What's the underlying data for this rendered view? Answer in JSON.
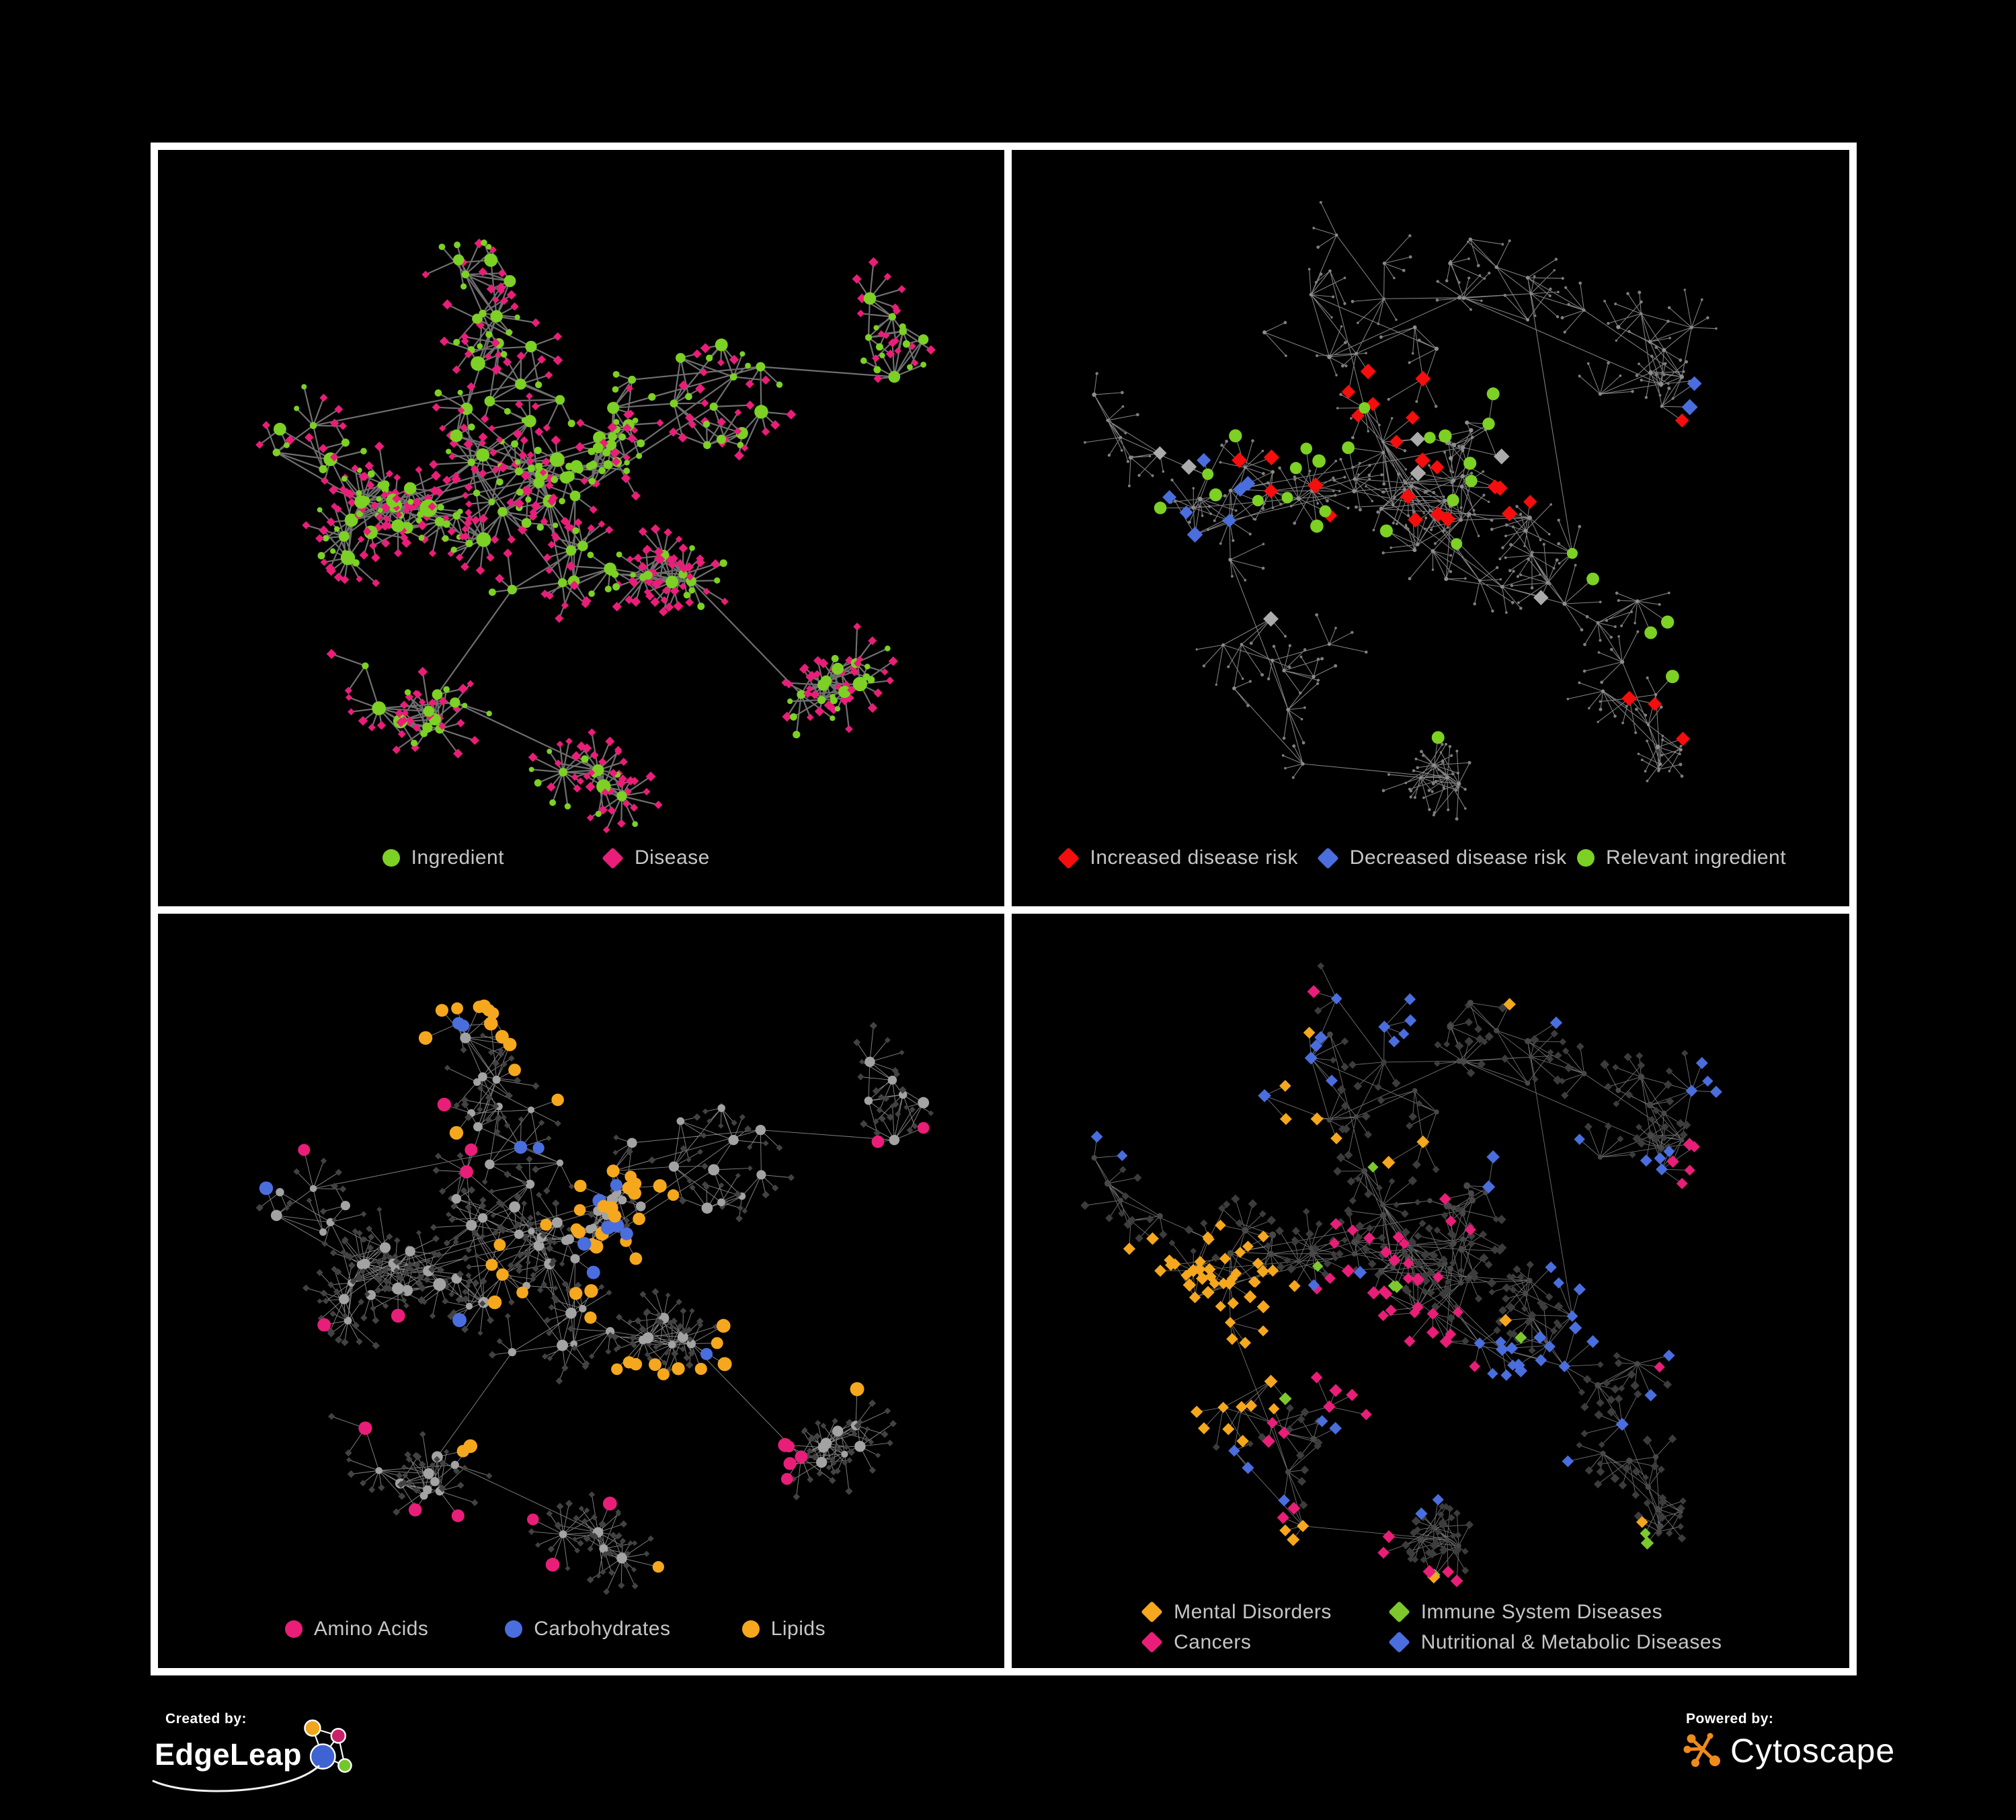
{
  "figure": {
    "background": "#000000",
    "frame_color": "#ffffff",
    "legend_text_color": "#c6c6c6"
  },
  "palette": {
    "green": "#7dd024",
    "magenta": "#e91e78",
    "red": "#f60d0d",
    "blue": "#4a6ede",
    "yellow": "#f5a71e",
    "gray_highlight": "#ababab"
  },
  "layouts": {
    "A": {
      "seed": 101,
      "clusters": [
        [
          0.45,
          0.44,
          26,
          70,
          2,
          8
        ],
        [
          0.28,
          0.47,
          14,
          55,
          4,
          11
        ],
        [
          0.53,
          0.4,
          18,
          26,
          0,
          2
        ],
        [
          0.4,
          0.22,
          14,
          85,
          2,
          6
        ],
        [
          0.68,
          0.3,
          12,
          85,
          2,
          6
        ],
        [
          0.87,
          0.3,
          6,
          60,
          2,
          6
        ],
        [
          0.63,
          0.57,
          6,
          45,
          6,
          13
        ],
        [
          0.33,
          0.72,
          10,
          70,
          2,
          7
        ],
        [
          0.52,
          0.82,
          4,
          40,
          8,
          15
        ],
        [
          0.76,
          0.72,
          8,
          60,
          3,
          8
        ],
        [
          0.14,
          0.4,
          6,
          70,
          2,
          5
        ]
      ]
    },
    "B": {
      "seed": 202,
      "clusters": [
        [
          0.47,
          0.44,
          24,
          80,
          2,
          7
        ],
        [
          0.26,
          0.49,
          14,
          62,
          3,
          9
        ],
        [
          0.55,
          0.38,
          14,
          30,
          0,
          2
        ],
        [
          0.38,
          0.16,
          12,
          95,
          2,
          5
        ],
        [
          0.62,
          0.19,
          8,
          80,
          2,
          5
        ],
        [
          0.8,
          0.3,
          10,
          80,
          2,
          6
        ],
        [
          0.66,
          0.6,
          8,
          55,
          4,
          10
        ],
        [
          0.33,
          0.74,
          10,
          75,
          2,
          6
        ],
        [
          0.52,
          0.83,
          4,
          40,
          8,
          14
        ],
        [
          0.76,
          0.76,
          8,
          65,
          2,
          6
        ],
        [
          0.13,
          0.38,
          5,
          70,
          2,
          5
        ]
      ]
    }
  },
  "panels": [
    {
      "key": "ingredient-disease",
      "layout": "A",
      "seed": 11,
      "style": {
        "edge": "#6f6f6f",
        "edge_width": 2.2,
        "edge_opacity": 1,
        "hub": {
          "shape": "circle",
          "color": "#7dd024",
          "r_min": 5,
          "r_max": 11,
          "big_clusters": [
            1
          ],
          "big_bonus": 3.5
        },
        "leaf": {
          "shape": "diamond",
          "color": "#e91e78",
          "size": 6,
          "alt_ratio": 0.2,
          "alt_shape": "circle",
          "alt_color": "#7dd024",
          "alt_size": 4.5
        }
      },
      "highlights": [],
      "legend": {
        "rows": [
          {
            "top": "93.6%",
            "items": [
              {
                "shape": "circle",
                "color": "#7dd024",
                "label": "Ingredient",
                "left": "26.5%"
              },
              {
                "shape": "diamond",
                "color": "#e91e78",
                "label": "Disease",
                "left": "52.5%"
              }
            ]
          }
        ]
      }
    },
    {
      "key": "disease-risk",
      "layout": "B",
      "seed": 22,
      "style": {
        "edge": "#8a8a8a",
        "edge_width": 1.05,
        "edge_opacity": 0.95,
        "hub": {
          "shape": "circle",
          "color": "#8d8d8d",
          "r_min": 2,
          "r_max": 3.4
        },
        "leaf": {
          "shape": "circle",
          "color": "#7f7f7f",
          "size": 2
        }
      },
      "highlights": [
        {
          "shape": "diamond",
          "color": "#f60d0d",
          "size": 11,
          "spots": [
            [
              0.47,
              0.4,
              0.13,
              13
            ],
            [
              0.3,
              0.43,
              0.05,
              3
            ],
            [
              0.6,
              0.44,
              0.07,
              4
            ],
            [
              0.72,
              0.72,
              0.05,
              2
            ],
            [
              0.79,
              0.42,
              0.02,
              1
            ],
            [
              0.41,
              0.28,
              0.04,
              2
            ],
            [
              0.86,
              0.78,
              0.02,
              1
            ]
          ]
        },
        {
          "shape": "diamond",
          "color": "#4a6ede",
          "size": 11,
          "spots": [
            [
              0.25,
              0.46,
              0.07,
              7
            ],
            [
              0.845,
              0.325,
              0.035,
              2
            ]
          ]
        },
        {
          "shape": "diamond",
          "color": "#ababab",
          "size": 11,
          "spots": [
            [
              0.215,
              0.395,
              0.03,
              2
            ],
            [
              0.52,
              0.4,
              0.09,
              3
            ],
            [
              0.615,
              0.575,
              0.03,
              1
            ],
            [
              0.295,
              0.6,
              0.02,
              1
            ]
          ]
        },
        {
          "shape": "circle",
          "color": "#7dd024",
          "size": 9,
          "spots": [
            [
              0.45,
              0.41,
              0.13,
              13
            ],
            [
              0.28,
              0.45,
              0.08,
              6
            ],
            [
              0.165,
              0.5,
              0.02,
              1
            ],
            [
              0.7,
              0.54,
              0.04,
              2
            ],
            [
              0.82,
              0.67,
              0.04,
              3
            ],
            [
              0.52,
              0.69,
              0.02,
              1
            ],
            [
              0.57,
              0.3,
              0.03,
              2
            ]
          ]
        }
      ],
      "legend": {
        "rows": [
          {
            "top": "93.6%",
            "items": [
              {
                "shape": "diamond",
                "color": "#f60d0d",
                "label": "Increased disease risk",
                "left": "5.5%"
              },
              {
                "shape": "diamond",
                "color": "#4a6ede",
                "label": "Decreased disease risk",
                "left": "36.5%"
              },
              {
                "shape": "circle",
                "color": "#7dd024",
                "label": "Relevant ingredient",
                "left": "67.5%"
              }
            ]
          }
        ]
      }
    },
    {
      "key": "ingredient-classes",
      "layout": "A",
      "seed": 33,
      "style": {
        "edge": "#9a9a9a",
        "edge_width": 0.95,
        "edge_opacity": 0.85,
        "hub": {
          "shape": "circle",
          "color": "#a3a3a3",
          "r_min": 5,
          "r_max": 8.5,
          "big_clusters": [
            1
          ],
          "big_bonus": 2
        },
        "leaf": {
          "shape": "diamond",
          "color": "#424242",
          "size": 4.6
        }
      },
      "highlights": [
        {
          "shape": "circle",
          "color": "#f5a71e",
          "size": 9.5,
          "spots": [
            [
              0.55,
              0.4,
              0.07,
              20
            ],
            [
              0.46,
              0.48,
              0.08,
              10
            ],
            [
              0.42,
              0.2,
              0.12,
              10
            ],
            [
              0.58,
              0.6,
              0.045,
              6
            ],
            [
              0.7,
              0.575,
              0.05,
              4
            ],
            [
              0.3,
              0.17,
              0.03,
              2
            ],
            [
              0.55,
              0.12,
              0.03,
              2
            ],
            [
              0.66,
              0.88,
              0.02,
              1
            ],
            [
              0.37,
              0.66,
              0.03,
              2
            ],
            [
              0.83,
              0.52,
              0.02,
              1
            ],
            [
              0.31,
              0.1,
              0.02,
              1
            ]
          ]
        },
        {
          "shape": "circle",
          "color": "#4a6ede",
          "size": 9.5,
          "spots": [
            [
              0.545,
              0.405,
              0.055,
              5
            ],
            [
              0.46,
              0.3,
              0.05,
              2
            ],
            [
              0.3,
              0.075,
              0.02,
              1
            ],
            [
              0.075,
              0.335,
              0.02,
              1
            ],
            [
              0.72,
              0.595,
              0.02,
              1
            ],
            [
              0.35,
              0.54,
              0.03,
              1
            ],
            [
              0.52,
              0.43,
              0.04,
              2
            ],
            [
              0.36,
              0.12,
              0.02,
              1
            ]
          ]
        },
        {
          "shape": "circle",
          "color": "#e91e78",
          "size": 9.5,
          "spots": [
            [
              0.235,
              0.225,
              0.04,
              2
            ],
            [
              0.36,
              0.33,
              0.04,
              2
            ],
            [
              0.3,
              0.55,
              0.03,
              1
            ],
            [
              0.125,
              0.59,
              0.02,
              1
            ],
            [
              0.32,
              0.865,
              0.03,
              2
            ],
            [
              0.45,
              0.78,
              0.02,
              1
            ],
            [
              0.57,
              0.72,
              0.02,
              1
            ],
            [
              0.72,
              0.72,
              0.06,
              5
            ],
            [
              0.82,
              0.33,
              0.02,
              1
            ],
            [
              0.965,
              0.315,
              0.02,
              1
            ],
            [
              0.27,
              0.68,
              0.02,
              1
            ],
            [
              0.42,
              0.92,
              0.02,
              1
            ]
          ]
        }
      ],
      "legend": {
        "rows": [
          {
            "top": "94.8%",
            "items": [
              {
                "shape": "circle",
                "color": "#e91e78",
                "label": "Amino Acids",
                "left": "15%"
              },
              {
                "shape": "circle",
                "color": "#4a6ede",
                "label": "Carbohydrates",
                "left": "41%"
              },
              {
                "shape": "circle",
                "color": "#f5a71e",
                "label": "Lipids",
                "left": "69%"
              }
            ]
          }
        ]
      }
    },
    {
      "key": "disease-categories",
      "layout": "B",
      "seed": 44,
      "style": {
        "edge": "#8d8d8d",
        "edge_width": 0.9,
        "edge_opacity": 0.8,
        "hub": {
          "shape": "circle",
          "color": "#484848",
          "r_min": 3.5,
          "r_max": 5
        },
        "leaf": {
          "shape": "diamond",
          "color": "#3c3c3c",
          "size": 5.6
        }
      },
      "highlights": [
        {
          "shape": "diamond",
          "color": "#f5a71e",
          "size": 9,
          "spots": [
            [
              0.22,
              0.555,
              0.1,
              42
            ],
            [
              0.28,
              0.47,
              0.06,
              10
            ],
            [
              0.35,
              0.3,
              0.04,
              3
            ],
            [
              0.3,
              0.17,
              0.03,
              2
            ],
            [
              0.48,
              0.3,
              0.03,
              2
            ],
            [
              0.6,
              0.55,
              0.02,
              1
            ],
            [
              0.48,
              0.875,
              0.02,
              1
            ],
            [
              0.75,
              0.82,
              0.02,
              1
            ],
            [
              0.17,
              0.92,
              0.02,
              2
            ],
            [
              0.3,
              0.92,
              0.03,
              3
            ],
            [
              0.62,
              0.1,
              0.02,
              1
            ],
            [
              0.13,
              0.13,
              0.02,
              1
            ]
          ]
        },
        {
          "shape": "diamond",
          "color": "#e91e78",
          "size": 9,
          "spots": [
            [
              0.46,
              0.545,
              0.09,
              26
            ],
            [
              0.42,
              0.45,
              0.06,
              8
            ],
            [
              0.55,
              0.4,
              0.04,
              3
            ],
            [
              0.38,
              0.875,
              0.04,
              4
            ],
            [
              0.52,
              0.875,
              0.03,
              3
            ],
            [
              0.88,
              0.345,
              0.045,
              5
            ],
            [
              0.78,
              0.62,
              0.02,
              1
            ],
            [
              0.3,
              0.695,
              0.03,
              3
            ],
            [
              0.27,
              0.125,
              0.02,
              1
            ],
            [
              0.235,
              0.055,
              0.02,
              1
            ]
          ]
        },
        {
          "shape": "diamond",
          "color": "#4a6ede",
          "size": 9,
          "spots": [
            [
              0.61,
              0.615,
              0.065,
              14
            ],
            [
              0.7,
              0.5,
              0.06,
              7
            ],
            [
              0.8,
              0.415,
              0.055,
              6
            ],
            [
              0.48,
              0.115,
              0.05,
              6
            ],
            [
              0.3,
              0.215,
              0.05,
              5
            ],
            [
              0.175,
              0.175,
              0.04,
              3
            ],
            [
              0.85,
              0.25,
              0.04,
              4
            ],
            [
              0.6,
              0.3,
              0.04,
              3
            ],
            [
              0.43,
              0.7,
              0.04,
              3
            ],
            [
              0.25,
              0.79,
              0.04,
              3
            ],
            [
              0.4,
              0.55,
              0.03,
              2
            ],
            [
              0.55,
              0.75,
              0.02,
              1
            ],
            [
              0.9,
              0.5,
              0.02,
              1
            ],
            [
              0.76,
              0.675,
              0.03,
              2
            ],
            [
              0.945,
              0.12,
              0.03,
              2
            ],
            [
              0.66,
              0.055,
              0.02,
              1
            ]
          ]
        },
        {
          "shape": "diamond",
          "color": "#7dc82d",
          "size": 9,
          "spots": [
            [
              0.42,
              0.55,
              0.03,
              2
            ],
            [
              0.38,
              0.48,
              0.02,
              1
            ],
            [
              0.35,
              0.625,
              0.02,
              1
            ],
            [
              0.44,
              0.345,
              0.02,
              1
            ],
            [
              0.62,
              0.575,
              0.02,
              1
            ],
            [
              0.68,
              0.85,
              0.02,
              1
            ],
            [
              0.73,
              0.875,
              0.02,
              1
            ],
            [
              0.5,
              0.935,
              0.01,
              1
            ]
          ]
        }
      ],
      "legend": {
        "rows": [
          {
            "top": "92.6%",
            "items": [
              {
                "shape": "diamond",
                "color": "#f5a71e",
                "label": "Mental Disorders",
                "left": "15.5%"
              },
              {
                "shape": "diamond",
                "color": "#7dc82d",
                "label": "Immune System Diseases",
                "left": "45%"
              }
            ]
          },
          {
            "top": "96.6%",
            "items": [
              {
                "shape": "diamond",
                "color": "#e91e78",
                "label": "Cancers",
                "left": "15.5%"
              },
              {
                "shape": "diamond",
                "color": "#4a6ede",
                "label": "Nutritional & Metabolic Diseases",
                "left": "45%"
              }
            ]
          }
        ]
      }
    }
  ],
  "credits": {
    "created_by": {
      "label": "Created by:",
      "brand": "EdgeLeap"
    },
    "powered_by": {
      "label": "Powered by:",
      "brand": "Cytoscape"
    }
  }
}
